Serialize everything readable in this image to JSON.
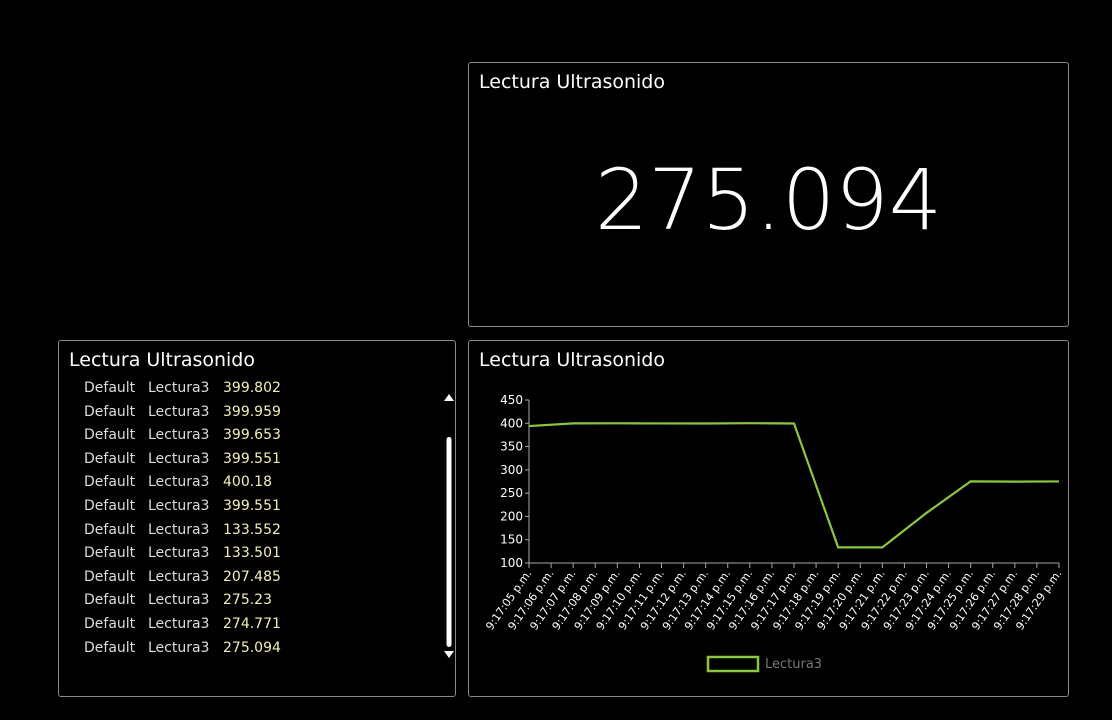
{
  "panels": {
    "value": {
      "title": "Lectura Ultrasonido",
      "value": "275.094"
    },
    "log": {
      "title": "Lectura Ultrasonido",
      "rows": [
        [
          "Default",
          "Lectura3",
          "399.802"
        ],
        [
          "Default",
          "Lectura3",
          "399.959"
        ],
        [
          "Default",
          "Lectura3",
          "399.653"
        ],
        [
          "Default",
          "Lectura3",
          "399.551"
        ],
        [
          "Default",
          "Lectura3",
          "400.18"
        ],
        [
          "Default",
          "Lectura3",
          "399.551"
        ],
        [
          "Default",
          "Lectura3",
          "133.552"
        ],
        [
          "Default",
          "Lectura3",
          "133.501"
        ],
        [
          "Default",
          "Lectura3",
          "207.485"
        ],
        [
          "Default",
          "Lectura3",
          "275.23"
        ],
        [
          "Default",
          "Lectura3",
          "274.771"
        ],
        [
          "Default",
          "Lectura3",
          "275.094"
        ]
      ]
    }
  },
  "chart_data": {
    "type": "line",
    "title": "Lectura Ultrasonido",
    "x": [
      5,
      7,
      9,
      11,
      13,
      15,
      17,
      19,
      21,
      23,
      25,
      27,
      29
    ],
    "series": [
      {
        "name": "Lectura3",
        "color": "#8cc63f",
        "values": [
          394,
          399.802,
          399.959,
          399.653,
          399.551,
          400.18,
          399.551,
          133.552,
          133.501,
          207.485,
          275.23,
          274.771,
          275.094
        ]
      }
    ],
    "xlim": [
      5,
      29
    ],
    "xticks": [
      {
        "value": 5,
        "label": "9:17:05 p.m."
      },
      {
        "value": 6,
        "label": "9:17:06 p.m."
      },
      {
        "value": 7,
        "label": "9:17:07 p.m."
      },
      {
        "value": 8,
        "label": "9:17:08 p.m."
      },
      {
        "value": 9,
        "label": "9:17:09 p.m."
      },
      {
        "value": 10,
        "label": "9:17:10 p.m."
      },
      {
        "value": 11,
        "label": "9:17:11 p.m."
      },
      {
        "value": 12,
        "label": "9:17:12 p.m."
      },
      {
        "value": 13,
        "label": "9:17:13 p.m."
      },
      {
        "value": 14,
        "label": "9:17:14 p.m."
      },
      {
        "value": 15,
        "label": "9:17:15 p.m."
      },
      {
        "value": 16,
        "label": "9:17:16 p.m."
      },
      {
        "value": 17,
        "label": "9:17:17 p.m."
      },
      {
        "value": 18,
        "label": "9:17:18 p.m."
      },
      {
        "value": 19,
        "label": "9:17:19 p.m."
      },
      {
        "value": 20,
        "label": "9:17:20 p.m."
      },
      {
        "value": 21,
        "label": "9:17:21 p.m."
      },
      {
        "value": 22,
        "label": "9:17:22 p.m."
      },
      {
        "value": 23,
        "label": "9:17:23 p.m."
      },
      {
        "value": 24,
        "label": "9:17:24 p.m."
      },
      {
        "value": 25,
        "label": "9:17:25 p.m."
      },
      {
        "value": 26,
        "label": "9:17:26 p.m."
      },
      {
        "value": 27,
        "label": "9:17:27 p.m."
      },
      {
        "value": 28,
        "label": "9:17:28 p.m."
      },
      {
        "value": 29,
        "label": "9:17:29 p.m."
      }
    ],
    "ylim": [
      100,
      450
    ],
    "yticks": [
      100,
      150,
      200,
      250,
      300,
      350,
      400,
      450
    ],
    "legend": "bottom"
  }
}
